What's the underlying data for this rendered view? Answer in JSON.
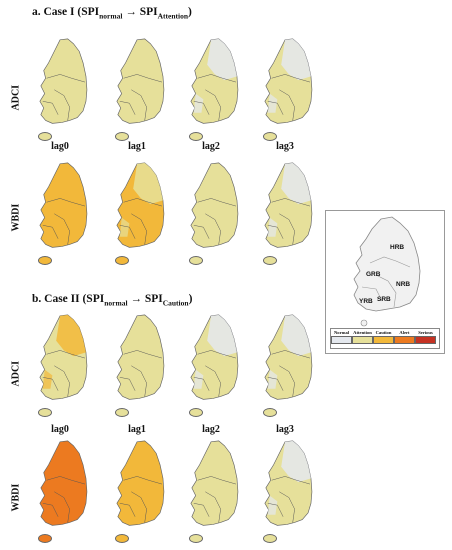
{
  "case1": {
    "title_prefix": "a. Case I (SPI",
    "sub1": "normal",
    "arrow": " → SPI",
    "sub2": "Attention",
    "suffix": ")"
  },
  "case2": {
    "title_prefix": "b. Case II (SPI",
    "sub1": "normal",
    "arrow": " → SPI",
    "sub2": "Caution",
    "suffix": ")"
  },
  "rows": {
    "adci": "ADCI",
    "wbdi": "WBDI"
  },
  "lags": [
    "lag0",
    "lag1",
    "lag2",
    "lag3"
  ],
  "legend": {
    "labels": [
      "Normal",
      "Attention",
      "Caution",
      "Alert",
      "Serious"
    ],
    "colors": [
      "#e4e8ee",
      "#e6e09a",
      "#f2b83a",
      "#ec7a20",
      "#c53223"
    ]
  },
  "basins": [
    "HRB",
    "GRB",
    "NRB",
    "YRB",
    "SRB"
  ],
  "map_levels": {
    "case1_adci": [
      "Attention",
      "Attention",
      "Attention/Normal",
      "Attention/Normal"
    ],
    "case1_wbdi": [
      "Caution",
      "Caution/Attention",
      "Attention",
      "Attention/Normal"
    ],
    "case2_adci": [
      "Attention/Caution",
      "Attention",
      "Attention/Normal",
      "Attention/Normal"
    ],
    "case2_wbdi": [
      "Alert",
      "Caution",
      "Attention",
      "Attention/Normal"
    ]
  }
}
